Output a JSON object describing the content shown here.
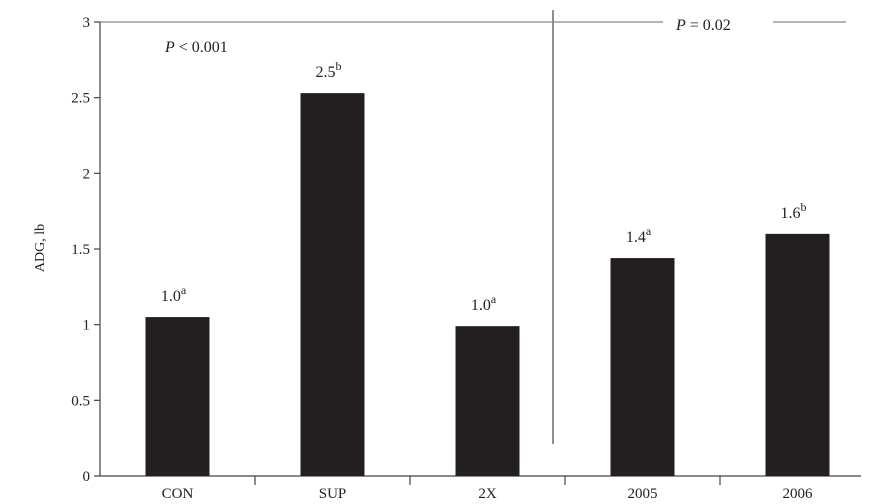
{
  "chart_data": {
    "type": "bar",
    "title": "",
    "xlabel": "",
    "ylabel": "ADG, lb",
    "ylim": [
      0,
      3
    ],
    "yticks": [
      "0",
      "0.5",
      "1",
      "1.5",
      "2",
      "2.5",
      "3"
    ],
    "categories": [
      "CON",
      "SUP",
      "2X",
      "2005",
      "2006"
    ],
    "values": [
      1.05,
      2.53,
      0.99,
      1.44,
      1.6
    ],
    "data_labels": [
      {
        "value": "1.0",
        "sup": "a"
      },
      {
        "value": "2.5",
        "sup": "b"
      },
      {
        "value": "1.0",
        "sup": "a"
      },
      {
        "value": "1.4",
        "sup": "a"
      },
      {
        "value": "1.6",
        "sup": "b"
      }
    ],
    "annotations": [
      {
        "italic": "P",
        "text": " < 0.001"
      },
      {
        "italic": "P",
        "text": " = 0.02"
      }
    ],
    "bar_color": "#231f20",
    "grid": false
  }
}
